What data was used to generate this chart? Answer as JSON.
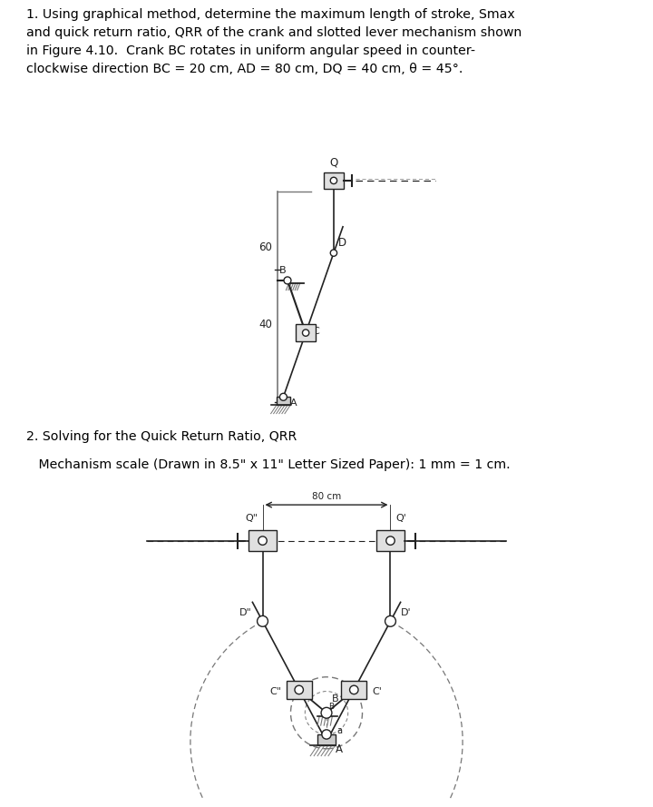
{
  "title_text": "1. Using graphical method, determine the maximum length of stroke, Smax\nand quick return ratio, QRR of the crank and slotted lever mechanism shown\nin Figure 4.10.  Crank BC rotates in uniform angular speed in counter-\nclockwise direction BC = 20 cm, AD = 80 cm, DQ = 40 cm, θ = 45°.",
  "section2_line1": "2. Solving for the Quick Return Ratio, QRR",
  "section2_line2": "   Mechanism scale (Drawn in 8.5\" x 11\" Letter Sized Paper): 1 mm = 1 cm.",
  "bg_color": "#ffffff",
  "line_color": "#777777",
  "dark_color": "#222222",
  "gray_fill": "#cccccc",
  "light_gray": "#e0e0e0",
  "fig_width": 7.2,
  "fig_height": 8.89,
  "dpi": 100
}
